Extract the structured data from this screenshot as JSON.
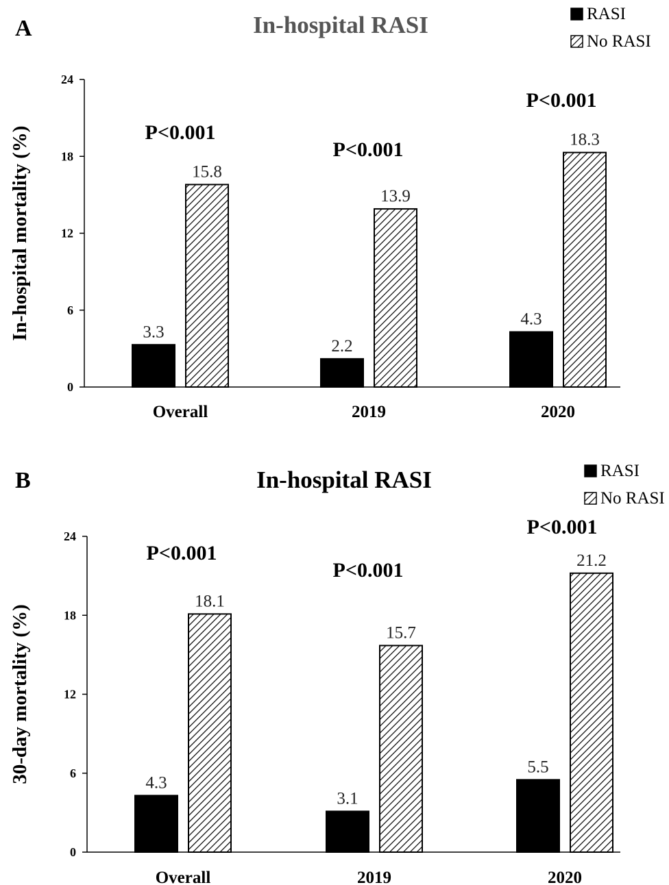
{
  "colors": {
    "rasi_fill": "#000000",
    "no_rasi_fill": "#ffffff",
    "hatch_color": "#000000",
    "panel_a_title_color": "#555555",
    "panel_b_title_color": "#000000",
    "text_color": "#000000"
  },
  "chart_data": [
    {
      "type": "bar",
      "panel_label": "A",
      "title": "In-hospital RASI",
      "xlabel": "",
      "ylabel": "In-hospital mortality (%)",
      "ylim": [
        0,
        24
      ],
      "yticks": [
        "0",
        "6",
        "12",
        "18",
        "24"
      ],
      "categories": [
        "Overall",
        "2019",
        "2020"
      ],
      "series": [
        {
          "name": "RASI",
          "values": [
            3.3,
            2.2,
            4.3
          ],
          "labels": [
            "3.3",
            "2.2",
            "4.3"
          ],
          "pattern": "solid"
        },
        {
          "name": "No RASI",
          "values": [
            15.8,
            13.9,
            18.3
          ],
          "labels": [
            "15.8",
            "13.9",
            "18.3"
          ],
          "pattern": "hatched"
        }
      ],
      "annotations": [
        "P<0.001",
        "P<0.001",
        "P<0.001"
      ],
      "legend": "top-right",
      "grid": false
    },
    {
      "type": "bar",
      "panel_label": "B",
      "title": "In-hospital RASI",
      "xlabel": "",
      "ylabel": "30-day mortality (%)",
      "ylim": [
        0,
        24
      ],
      "yticks": [
        "0",
        "6",
        "12",
        "18",
        "24"
      ],
      "categories": [
        "Overall",
        "2019",
        "2020"
      ],
      "series": [
        {
          "name": "RASI",
          "values": [
            4.3,
            3.1,
            5.5
          ],
          "labels": [
            "4.3",
            "3.1",
            "5.5"
          ],
          "pattern": "solid"
        },
        {
          "name": "No RASI",
          "values": [
            18.1,
            15.7,
            21.2
          ],
          "labels": [
            "18.1",
            "15.7",
            "21.2"
          ],
          "pattern": "hatched"
        }
      ],
      "annotations": [
        "P<0.001",
        "P<0.001",
        "P<0.001"
      ],
      "legend": "top-right",
      "grid": false
    }
  ]
}
